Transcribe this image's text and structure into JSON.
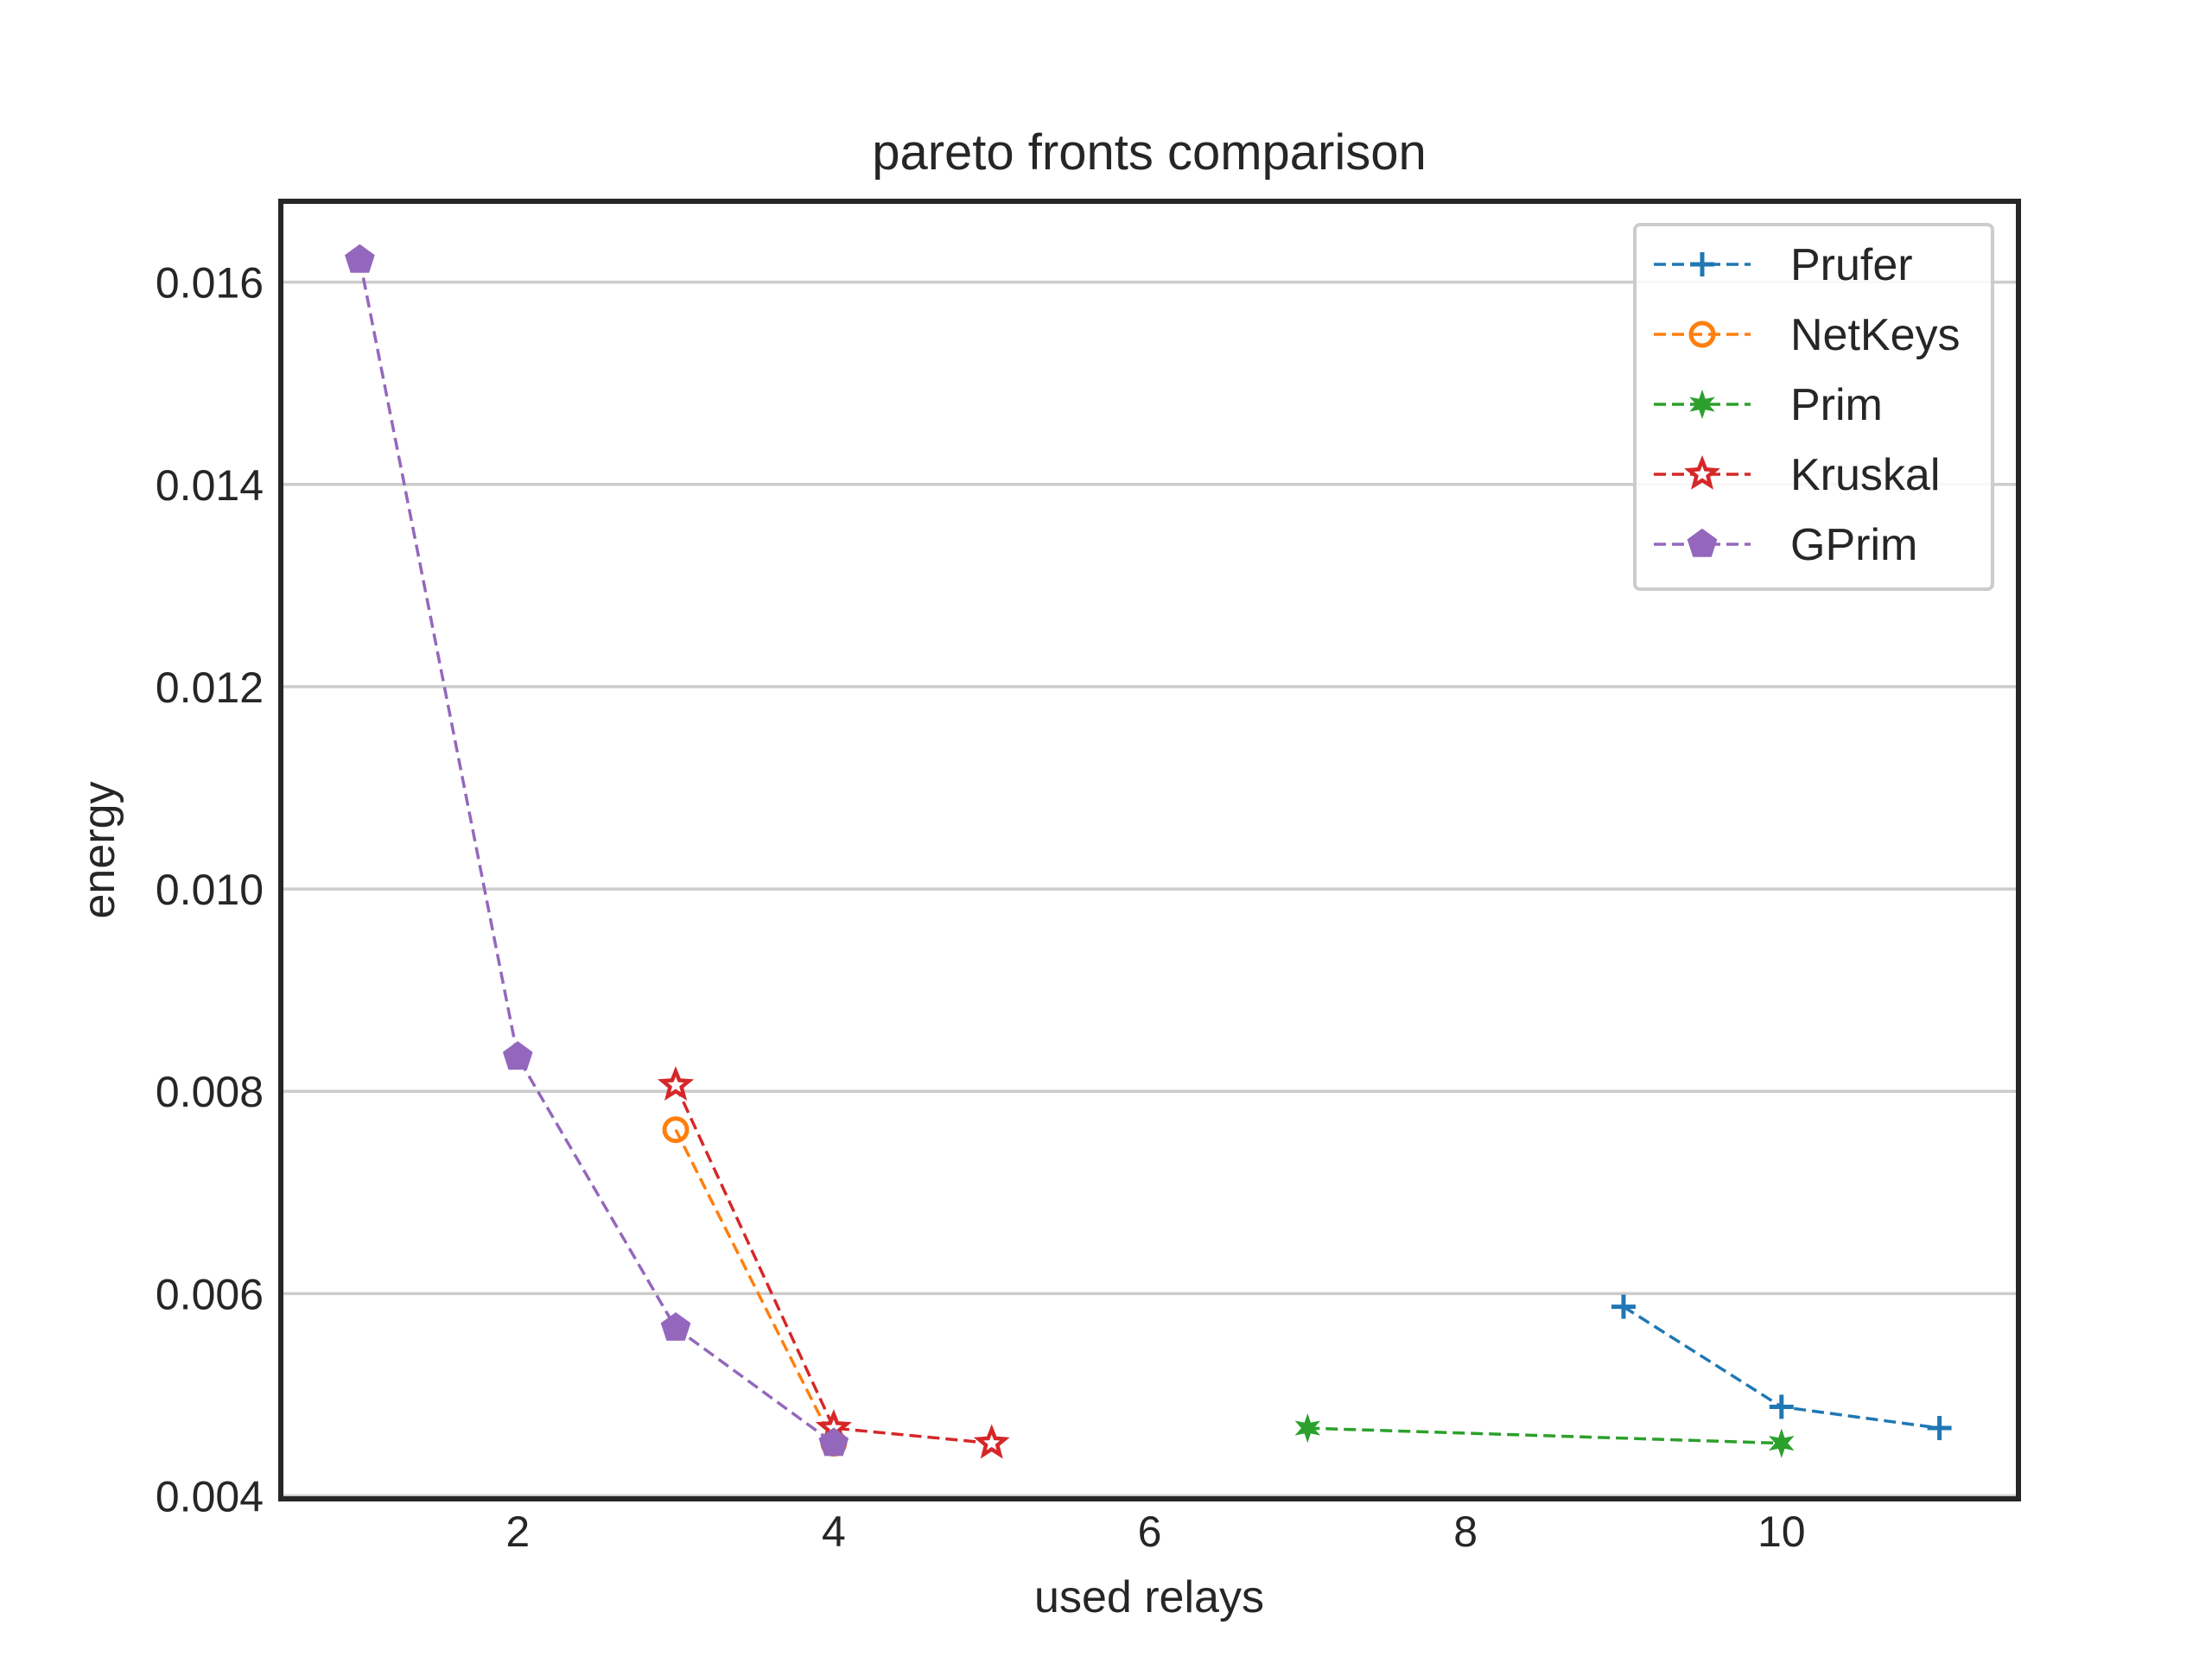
{
  "chart_data": {
    "type": "line",
    "title": "pareto fronts comparison",
    "xlabel": "used relays",
    "ylabel": "energy",
    "xlim": [
      0.5,
      11.5
    ],
    "ylim": [
      0.00397,
      0.0168
    ],
    "xticks": [
      2,
      4,
      6,
      8,
      10
    ],
    "xtick_labels": [
      "2",
      "4",
      "6",
      "8",
      "10"
    ],
    "yticks": [
      0.004,
      0.006,
      0.008,
      0.01,
      0.012,
      0.014,
      0.016
    ],
    "ytick_labels": [
      "0.004",
      "0.006",
      "0.008",
      "0.010",
      "0.012",
      "0.014",
      "0.016"
    ],
    "grid": "horizontal",
    "legend_position": "top-right",
    "series": [
      {
        "name": "Prufer",
        "color": "#1f77b4",
        "marker": "plus",
        "linestyle": "dashed",
        "x": [
          9,
          10,
          11
        ],
        "y": [
          0.00587,
          0.00488,
          0.00467
        ]
      },
      {
        "name": "NetKeys",
        "color": "#ff7f0e",
        "marker": "circle",
        "linestyle": "dashed",
        "x": [
          3,
          4
        ],
        "y": [
          0.00762,
          0.00452
        ]
      },
      {
        "name": "Prim",
        "color": "#2ca02c",
        "marker": "star",
        "linestyle": "dashed",
        "x": [
          7,
          10
        ],
        "y": [
          0.00467,
          0.00452
        ]
      },
      {
        "name": "Kruskal",
        "color": "#d62728",
        "marker": "star-outline",
        "linestyle": "dashed",
        "x": [
          3,
          4,
          5
        ],
        "y": [
          0.00806,
          0.00467,
          0.00452
        ]
      },
      {
        "name": "GPrim",
        "color": "#9467bd",
        "marker": "pentagon",
        "linestyle": "dashed",
        "x": [
          1,
          2,
          3,
          4
        ],
        "y": [
          0.01622,
          0.00834,
          0.00566,
          0.00452
        ]
      }
    ]
  }
}
